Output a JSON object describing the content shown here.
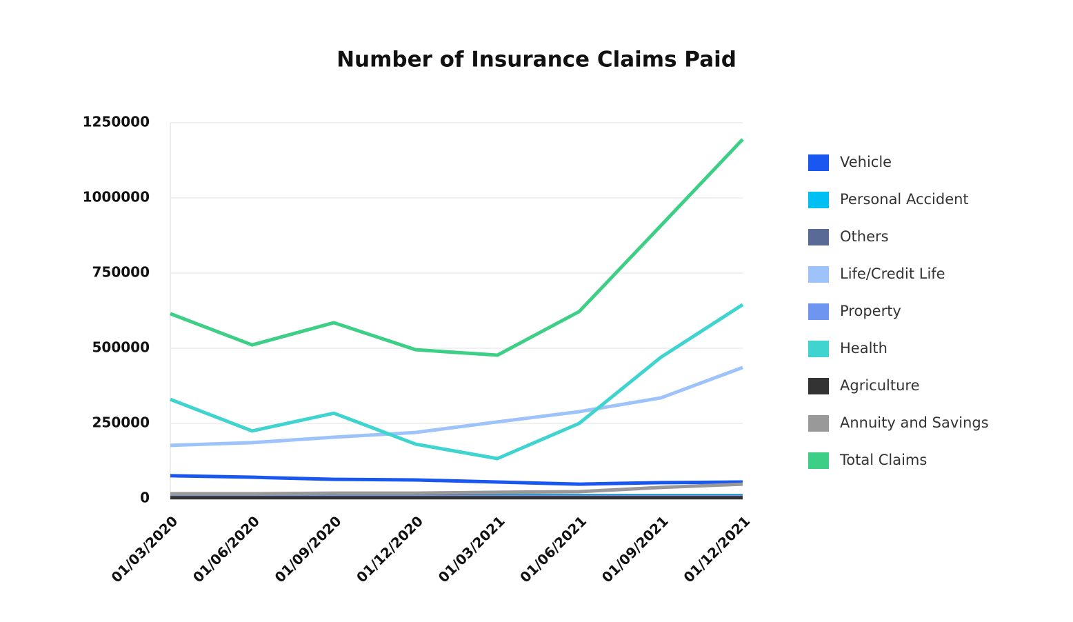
{
  "chart_data": {
    "type": "line",
    "title": "Number of Insurance Claims Paid",
    "categories": [
      "01/03/2020",
      "01/06/2020",
      "01/09/2020",
      "01/12/2020",
      "01/03/2021",
      "01/06/2021",
      "01/09/2021",
      "01/12/2021"
    ],
    "series": [
      {
        "name": "Vehicle",
        "color": "#1a56f0",
        "values": [
          76000,
          71000,
          64000,
          62000,
          55000,
          48000,
          53000,
          55000
        ]
      },
      {
        "name": "Personal Accident",
        "color": "#00c0f3",
        "values": [
          10000,
          10000,
          10000,
          10000,
          10000,
          10000,
          10000,
          10000
        ]
      },
      {
        "name": "Others",
        "color": "#5a6a96",
        "values": [
          8000,
          8000,
          8000,
          8000,
          8000,
          8000,
          8000,
          8000
        ]
      },
      {
        "name": "Life/Credit Life",
        "color": "#9ec3fb",
        "values": [
          177000,
          186000,
          204000,
          220000,
          255000,
          289000,
          335000,
          436000
        ]
      },
      {
        "name": "Property",
        "color": "#6e96f0",
        "values": [
          6000,
          6000,
          6000,
          6000,
          6000,
          6000,
          6000,
          6000
        ]
      },
      {
        "name": "Health",
        "color": "#3fd4cf",
        "values": [
          330000,
          225000,
          284000,
          181000,
          133000,
          250000,
          470000,
          645000
        ]
      },
      {
        "name": "Agriculture",
        "color": "#333333",
        "values": [
          3000,
          3000,
          3000,
          3000,
          3000,
          3000,
          3000,
          3000
        ]
      },
      {
        "name": "Annuity and Savings",
        "color": "#999999",
        "values": [
          16000,
          16000,
          18000,
          18000,
          21000,
          23000,
          37000,
          48000
        ]
      },
      {
        "name": "Total Claims",
        "color": "#3dcf85",
        "values": [
          615000,
          511000,
          585000,
          495000,
          477000,
          622000,
          908000,
          1195000
        ]
      }
    ],
    "ylim": [
      0,
      1250000
    ],
    "yticks": [
      0,
      250000,
      500000,
      750000,
      1000000,
      1250000
    ],
    "grid": true,
    "legend": "right"
  }
}
